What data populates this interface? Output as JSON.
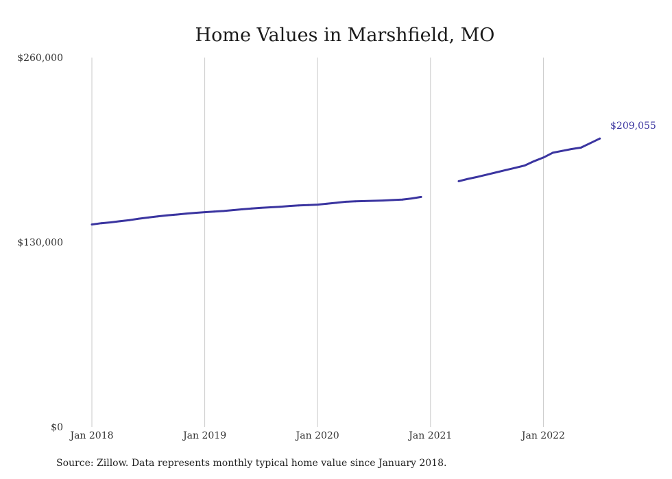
{
  "chart_data": {
    "type": "line",
    "title": "Home Values in Marshfield, MO",
    "xlabel": "",
    "ylabel": "",
    "ylim": [
      0,
      260000
    ],
    "xlim": [
      "2018-01",
      "2022-07"
    ],
    "y_ticks": [
      {
        "value": 0,
        "label": "$0"
      },
      {
        "value": 130000,
        "label": "$130,000"
      },
      {
        "value": 260000,
        "label": "$260,000"
      }
    ],
    "x_ticks": [
      {
        "date": "2018-01",
        "label": "Jan 2018"
      },
      {
        "date": "2019-01",
        "label": "Jan 2019"
      },
      {
        "date": "2020-01",
        "label": "Jan 2020"
      },
      {
        "date": "2021-01",
        "label": "Jan 2021"
      },
      {
        "date": "2022-01",
        "label": "Jan 2022"
      }
    ],
    "grid": "vertical",
    "line_color": "#3b35a0",
    "end_label": "$209,055",
    "series": [
      {
        "segments": [
          [
            {
              "x": "2018-01",
              "y": 142500
            },
            {
              "x": "2018-02",
              "y": 143400
            },
            {
              "x": "2018-03",
              "y": 144000
            },
            {
              "x": "2018-04",
              "y": 144800
            },
            {
              "x": "2018-05",
              "y": 145600
            },
            {
              "x": "2018-06",
              "y": 146600
            },
            {
              "x": "2018-07",
              "y": 147400
            },
            {
              "x": "2018-08",
              "y": 148200
            },
            {
              "x": "2018-09",
              "y": 148900
            },
            {
              "x": "2018-10",
              "y": 149500
            },
            {
              "x": "2018-11",
              "y": 150100
            },
            {
              "x": "2018-12",
              "y": 150700
            },
            {
              "x": "2019-01",
              "y": 151200
            },
            {
              "x": "2019-02",
              "y": 151600
            },
            {
              "x": "2019-03",
              "y": 152000
            },
            {
              "x": "2019-04",
              "y": 152600
            },
            {
              "x": "2019-05",
              "y": 153200
            },
            {
              "x": "2019-06",
              "y": 153800
            },
            {
              "x": "2019-07",
              "y": 154200
            },
            {
              "x": "2019-08",
              "y": 154600
            },
            {
              "x": "2019-09",
              "y": 155000
            },
            {
              "x": "2019-10",
              "y": 155500
            },
            {
              "x": "2019-11",
              "y": 155900
            },
            {
              "x": "2019-12",
              "y": 156200
            },
            {
              "x": "2020-01",
              "y": 156500
            },
            {
              "x": "2020-02",
              "y": 157100
            },
            {
              "x": "2020-03",
              "y": 157800
            },
            {
              "x": "2020-04",
              "y": 158500
            },
            {
              "x": "2020-05",
              "y": 158800
            },
            {
              "x": "2020-06",
              "y": 159000
            },
            {
              "x": "2020-07",
              "y": 159200
            },
            {
              "x": "2020-08",
              "y": 159400
            },
            {
              "x": "2020-09",
              "y": 159700
            },
            {
              "x": "2020-10",
              "y": 160000
            },
            {
              "x": "2020-11",
              "y": 160800
            },
            {
              "x": "2020-12",
              "y": 161900
            }
          ],
          [
            {
              "x": "2021-04",
              "y": 173000
            },
            {
              "x": "2021-05",
              "y": 174600
            },
            {
              "x": "2021-06",
              "y": 176000
            },
            {
              "x": "2021-07",
              "y": 177600
            },
            {
              "x": "2021-08",
              "y": 179200
            },
            {
              "x": "2021-09",
              "y": 180800
            },
            {
              "x": "2021-10",
              "y": 182400
            },
            {
              "x": "2021-11",
              "y": 184000
            },
            {
              "x": "2021-12",
              "y": 187000
            },
            {
              "x": "2022-01",
              "y": 189600
            },
            {
              "x": "2022-02",
              "y": 193000
            },
            {
              "x": "2022-03",
              "y": 194300
            },
            {
              "x": "2022-04",
              "y": 195600
            },
            {
              "x": "2022-05",
              "y": 196600
            },
            {
              "x": "2022-06",
              "y": 199800
            },
            {
              "x": "2022-07",
              "y": 203000
            }
          ]
        ]
      }
    ]
  },
  "footer": {
    "source": "Source: Zillow. Data represents monthly typical home value since January 2018."
  }
}
